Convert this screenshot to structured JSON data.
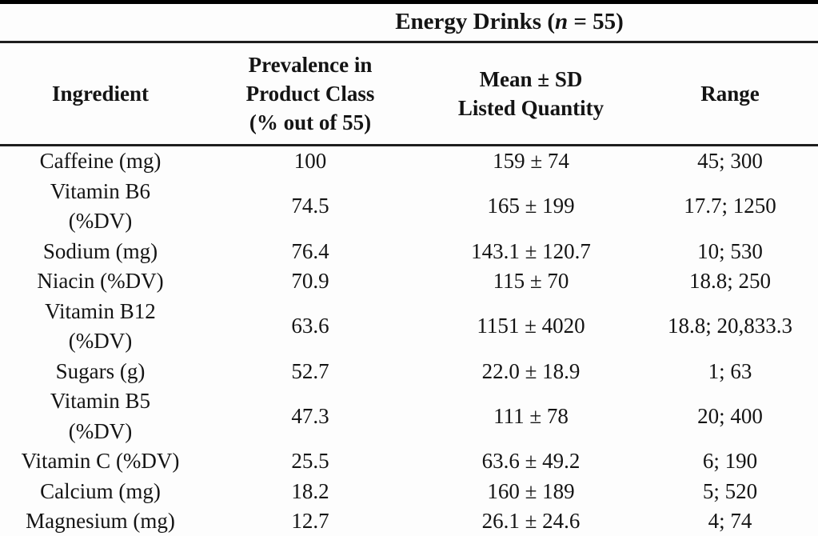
{
  "table": {
    "spanner": {
      "prefix": "Energy Drinks (",
      "n_symbol": "n",
      "suffix": " = 55)"
    },
    "columns": {
      "ingredient": "Ingredient",
      "prevalence": "Prevalence in\nProduct Class\n(% out of 55)",
      "mean_sd": "Mean ± SD\nListed Quantity",
      "range": "Range"
    },
    "rows": [
      {
        "ingredient": "Caffeine (mg)",
        "prevalence": "100",
        "mean_sd": "159 ± 74",
        "range": "45; 300"
      },
      {
        "ingredient": "Vitamin B6\n(%DV)",
        "prevalence": "74.5",
        "mean_sd": "165 ± 199",
        "range": "17.7; 1250"
      },
      {
        "ingredient": "Sodium (mg)",
        "prevalence": "76.4",
        "mean_sd": "143.1 ± 120.7",
        "range": "10; 530"
      },
      {
        "ingredient": "Niacin (%DV)",
        "prevalence": "70.9",
        "mean_sd": "115 ± 70",
        "range": "18.8; 250"
      },
      {
        "ingredient": "Vitamin B12\n(%DV)",
        "prevalence": "63.6",
        "mean_sd": "1151 ± 4020",
        "range": "18.8; 20,833.3"
      },
      {
        "ingredient": "Sugars (g)",
        "prevalence": "52.7",
        "mean_sd": "22.0 ± 18.9",
        "range": "1; 63"
      },
      {
        "ingredient": "Vitamin B5\n(%DV)",
        "prevalence": "47.3",
        "mean_sd": "111 ± 78",
        "range": "20; 400"
      },
      {
        "ingredient": "Vitamin C (%DV)",
        "prevalence": "25.5",
        "mean_sd": "63.6 ± 49.2",
        "range": "6; 190"
      },
      {
        "ingredient": "Calcium (mg)",
        "prevalence": "18.2",
        "mean_sd": "160 ± 189",
        "range": "5; 520"
      },
      {
        "ingredient": "Magnesium (mg)",
        "prevalence": "12.7",
        "mean_sd": "26.1 ± 24.6",
        "range": "4; 74"
      }
    ]
  },
  "colors": {
    "text": "#141414",
    "rule": "#1e1e1e",
    "top_rule": "#000000",
    "background": "#fdfdfd"
  }
}
